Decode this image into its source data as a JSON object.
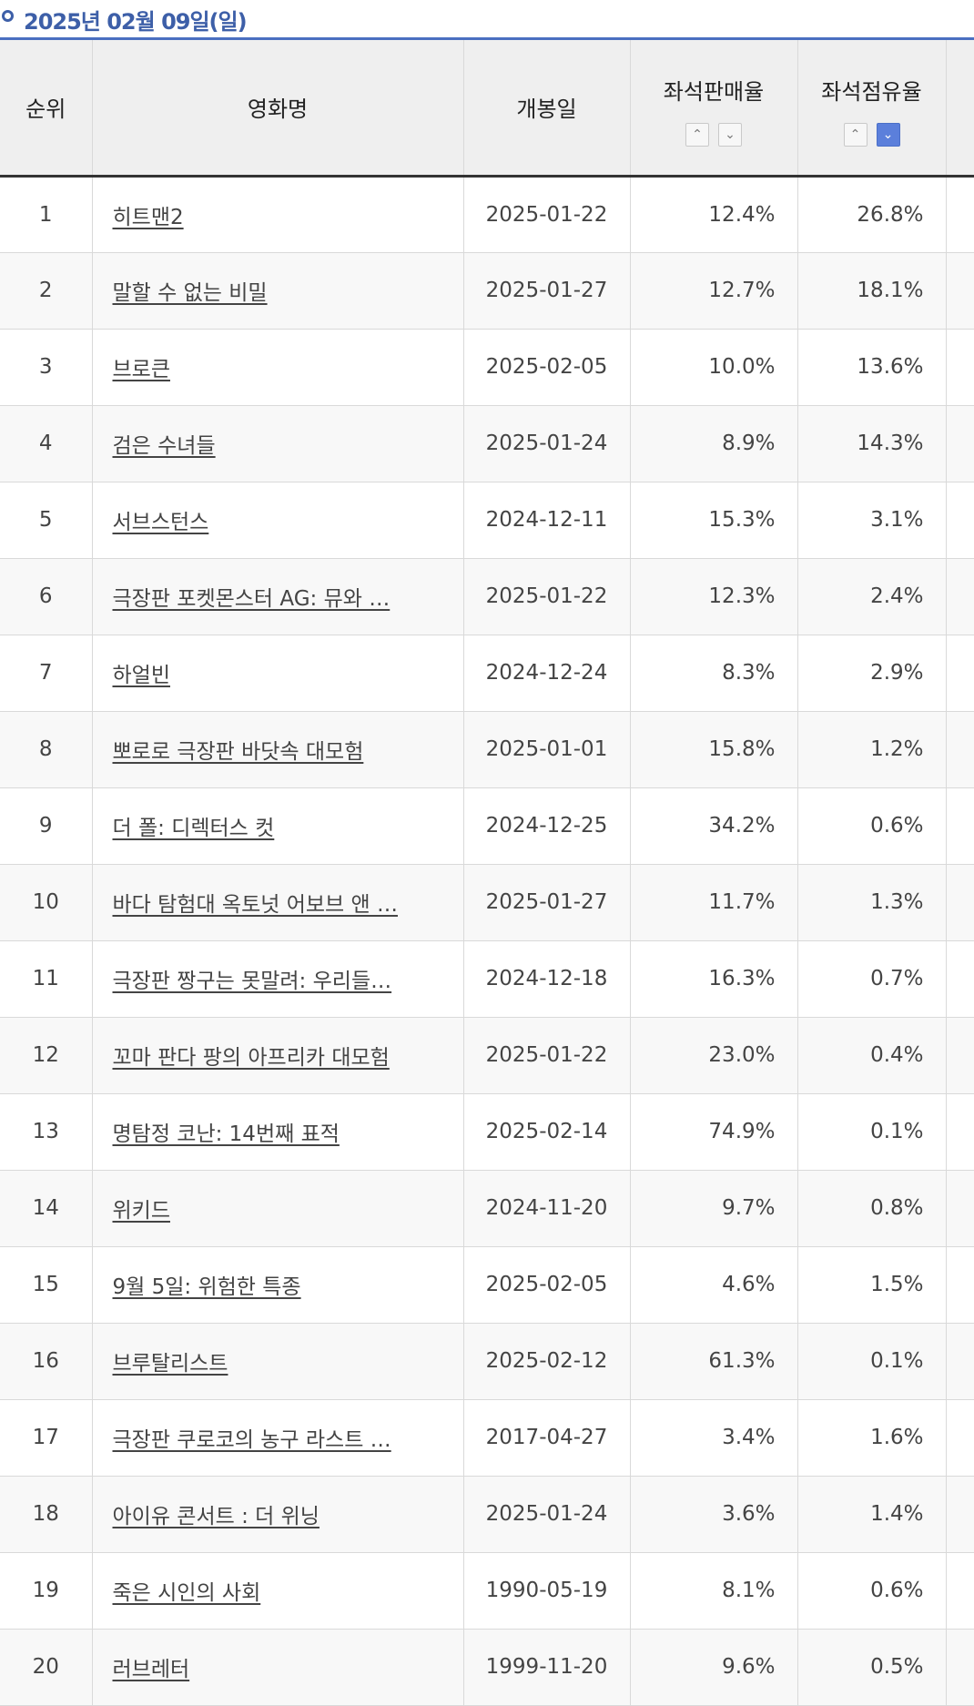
{
  "header": {
    "date_title": "2025년 02월 09일(일)"
  },
  "table": {
    "columns": {
      "rank": "순위",
      "title": "영화명",
      "release_date": "개봉일",
      "seat_sales_rate": "좌석판매율",
      "seat_share_rate": "좌석점유율"
    },
    "sort_icons": {
      "up": "chevron-up-icon",
      "down": "chevron-down-icon"
    },
    "active_sort": "좌석점유율 descending",
    "rows": [
      {
        "rank": "1",
        "title": "히트맨2",
        "release_date": "2025-01-22",
        "seat_sales_rate": "12.4%",
        "seat_share_rate": "26.8%"
      },
      {
        "rank": "2",
        "title": "말할 수 없는 비밀",
        "release_date": "2025-01-27",
        "seat_sales_rate": "12.7%",
        "seat_share_rate": "18.1%"
      },
      {
        "rank": "3",
        "title": "브로큰",
        "release_date": "2025-02-05",
        "seat_sales_rate": "10.0%",
        "seat_share_rate": "13.6%"
      },
      {
        "rank": "4",
        "title": "검은 수녀들",
        "release_date": "2025-01-24",
        "seat_sales_rate": "8.9%",
        "seat_share_rate": "14.3%"
      },
      {
        "rank": "5",
        "title": "서브스턴스",
        "release_date": "2024-12-11",
        "seat_sales_rate": "15.3%",
        "seat_share_rate": "3.1%"
      },
      {
        "rank": "6",
        "title": "극장판 포켓몬스터 AG: 뮤와 …",
        "release_date": "2025-01-22",
        "seat_sales_rate": "12.3%",
        "seat_share_rate": "2.4%"
      },
      {
        "rank": "7",
        "title": "하얼빈",
        "release_date": "2024-12-24",
        "seat_sales_rate": "8.3%",
        "seat_share_rate": "2.9%"
      },
      {
        "rank": "8",
        "title": "뽀로로 극장판 바닷속 대모험",
        "release_date": "2025-01-01",
        "seat_sales_rate": "15.8%",
        "seat_share_rate": "1.2%"
      },
      {
        "rank": "9",
        "title": "더 폴: 디렉터스 컷",
        "release_date": "2024-12-25",
        "seat_sales_rate": "34.2%",
        "seat_share_rate": "0.6%"
      },
      {
        "rank": "10",
        "title": "바다 탐험대 옥토넛 어보브 앤 …",
        "release_date": "2025-01-27",
        "seat_sales_rate": "11.7%",
        "seat_share_rate": "1.3%"
      },
      {
        "rank": "11",
        "title": "극장판 짱구는 못말려: 우리들…",
        "release_date": "2024-12-18",
        "seat_sales_rate": "16.3%",
        "seat_share_rate": "0.7%"
      },
      {
        "rank": "12",
        "title": "꼬마 판다 팡의 아프리카 대모험",
        "release_date": "2025-01-22",
        "seat_sales_rate": "23.0%",
        "seat_share_rate": "0.4%"
      },
      {
        "rank": "13",
        "title": "명탐정 코난: 14번째 표적",
        "release_date": "2025-02-14",
        "seat_sales_rate": "74.9%",
        "seat_share_rate": "0.1%"
      },
      {
        "rank": "14",
        "title": "위키드",
        "release_date": "2024-11-20",
        "seat_sales_rate": "9.7%",
        "seat_share_rate": "0.8%"
      },
      {
        "rank": "15",
        "title": "9월 5일: 위험한 특종",
        "release_date": "2025-02-05",
        "seat_sales_rate": "4.6%",
        "seat_share_rate": "1.5%"
      },
      {
        "rank": "16",
        "title": "브루탈리스트",
        "release_date": "2025-02-12",
        "seat_sales_rate": "61.3%",
        "seat_share_rate": "0.1%"
      },
      {
        "rank": "17",
        "title": "극장판 쿠로코의 농구 라스트 …",
        "release_date": "2017-04-27",
        "seat_sales_rate": "3.4%",
        "seat_share_rate": "1.6%"
      },
      {
        "rank": "18",
        "title": "아이유 콘서트 : 더 위닝",
        "release_date": "2025-01-24",
        "seat_sales_rate": "3.6%",
        "seat_share_rate": "1.4%"
      },
      {
        "rank": "19",
        "title": "죽은 시인의 사회",
        "release_date": "1990-05-19",
        "seat_sales_rate": "8.1%",
        "seat_share_rate": "0.6%"
      },
      {
        "rank": "20",
        "title": "러브레터",
        "release_date": "1999-11-20",
        "seat_sales_rate": "9.6%",
        "seat_share_rate": "0.5%"
      }
    ]
  },
  "colors": {
    "accent": "#3d5fa8",
    "active_sort_button": "#5b7fdb",
    "header_bg": "#efefef",
    "row_alt_bg": "#f8f8f8"
  }
}
